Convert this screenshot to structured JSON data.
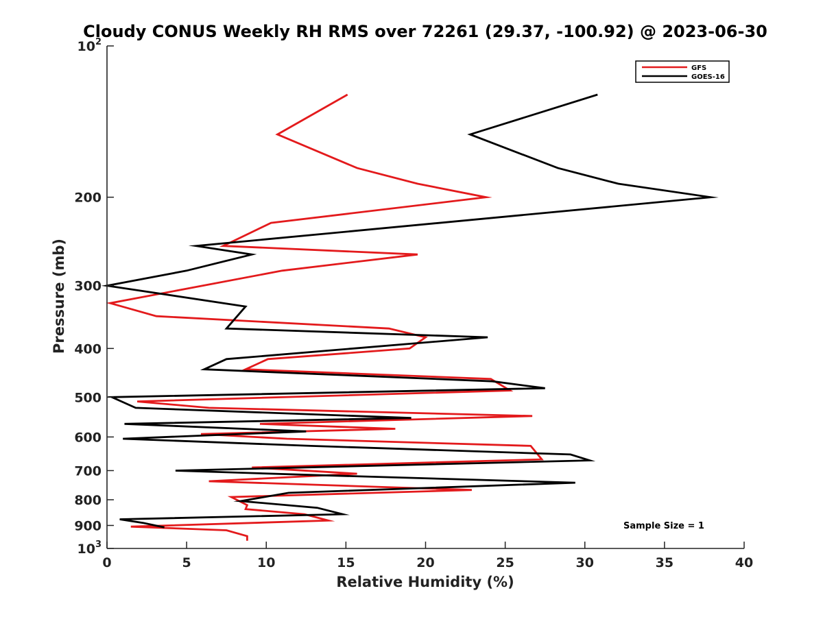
{
  "chart_data": {
    "type": "line",
    "title": "Cloudy CONUS Weekly RH RMS over 72261 (29.37, -100.92) @ 2023-06-30",
    "xlabel": "Relative Humidity (%)",
    "ylabel": "Pressure (mb)",
    "xlim": [
      0,
      40
    ],
    "ylim": [
      100,
      1000
    ],
    "yscale": "log",
    "yaxis_inverted": true,
    "grid": false,
    "legend_position": "top-right",
    "x_ticks": [
      "0",
      "5",
      "10",
      "15",
      "20",
      "25",
      "30",
      "35",
      "40"
    ],
    "y_ticks": [
      {
        "value": 100,
        "base": "10",
        "exp": "2"
      },
      {
        "value": 200,
        "label": "200"
      },
      {
        "value": 300,
        "label": "300"
      },
      {
        "value": 400,
        "label": "400"
      },
      {
        "value": 500,
        "label": "500"
      },
      {
        "value": 600,
        "label": "600"
      },
      {
        "value": 700,
        "label": "700"
      },
      {
        "value": 800,
        "label": "800"
      },
      {
        "value": 900,
        "label": "900"
      },
      {
        "value": 1000,
        "base": "10",
        "exp": "3"
      }
    ],
    "series": [
      {
        "name": "GFS",
        "color": "#e31a1c",
        "points": [
          [
            15.1,
            125
          ],
          [
            10.7,
            150
          ],
          [
            15.7,
            175
          ],
          [
            19.5,
            188
          ],
          [
            23.8,
            200
          ],
          [
            10.3,
            225
          ],
          [
            7.3,
            250
          ],
          [
            19.5,
            260
          ],
          [
            11.0,
            280
          ],
          [
            0.2,
            325
          ],
          [
            3.1,
            345
          ],
          [
            17.7,
            365
          ],
          [
            20.0,
            380
          ],
          [
            19.0,
            400
          ],
          [
            10.1,
            420
          ],
          [
            8.7,
            440
          ],
          [
            24.1,
            460
          ],
          [
            25.3,
            485
          ],
          [
            1.9,
            510
          ],
          [
            6.4,
            525
          ],
          [
            26.7,
            545
          ],
          [
            9.6,
            565
          ],
          [
            18.1,
            578
          ],
          [
            5.9,
            592
          ],
          [
            11.3,
            605
          ],
          [
            26.6,
            625
          ],
          [
            27.3,
            665
          ],
          [
            9.1,
            690
          ],
          [
            15.7,
            710
          ],
          [
            6.4,
            735
          ],
          [
            22.9,
            765
          ],
          [
            7.8,
            790
          ],
          [
            8.8,
            820
          ],
          [
            8.7,
            835
          ],
          [
            12.4,
            855
          ],
          [
            13.9,
            880
          ],
          [
            1.5,
            905
          ],
          [
            7.5,
            920
          ],
          [
            8.8,
            945
          ],
          [
            8.8,
            965
          ]
        ]
      },
      {
        "name": "GOES-16",
        "color": "#000000",
        "points": [
          [
            30.8,
            125
          ],
          [
            22.8,
            150
          ],
          [
            28.3,
            175
          ],
          [
            32.1,
            188
          ],
          [
            37.9,
            200
          ],
          [
            5.6,
            250
          ],
          [
            9.1,
            260
          ],
          [
            5.0,
            280
          ],
          [
            0.0,
            300
          ],
          [
            8.7,
            330
          ],
          [
            7.5,
            365
          ],
          [
            23.9,
            380
          ],
          [
            7.5,
            420
          ],
          [
            6.1,
            440
          ],
          [
            24.2,
            465
          ],
          [
            27.5,
            480
          ],
          [
            0.3,
            500
          ],
          [
            1.8,
            525
          ],
          [
            19.1,
            550
          ],
          [
            1.1,
            565
          ],
          [
            12.5,
            585
          ],
          [
            1.0,
            605
          ],
          [
            12.8,
            625
          ],
          [
            29.1,
            650
          ],
          [
            30.3,
            668
          ],
          [
            4.3,
            700
          ],
          [
            13.4,
            715
          ],
          [
            29.4,
            740
          ],
          [
            11.4,
            775
          ],
          [
            8.4,
            805
          ],
          [
            13.2,
            830
          ],
          [
            14.8,
            855
          ],
          [
            0.8,
            875
          ],
          [
            2.3,
            890
          ],
          [
            3.6,
            908
          ]
        ]
      }
    ],
    "annotation": "Sample Size = 1"
  }
}
